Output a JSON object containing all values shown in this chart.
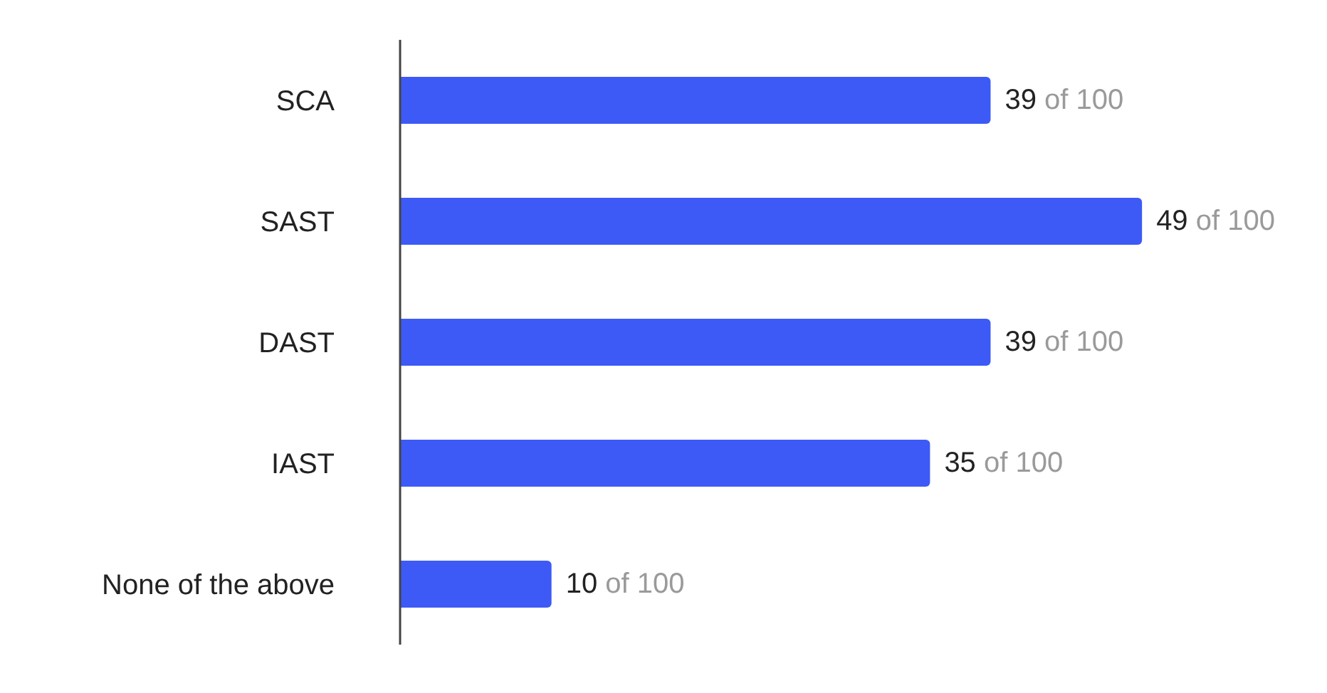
{
  "chart_data": {
    "type": "bar",
    "orientation": "horizontal",
    "categories": [
      "SCA",
      "SAST",
      "DAST",
      "IAST",
      "None of the above"
    ],
    "values": [
      39,
      49,
      39,
      35,
      10
    ],
    "value_labels": [
      "39 of 100",
      "49 of 100",
      "39 of 100",
      "35 of 100",
      "10 of 100"
    ],
    "color": "#3d5af6",
    "grid": false,
    "tick_labels": "y"
  }
}
